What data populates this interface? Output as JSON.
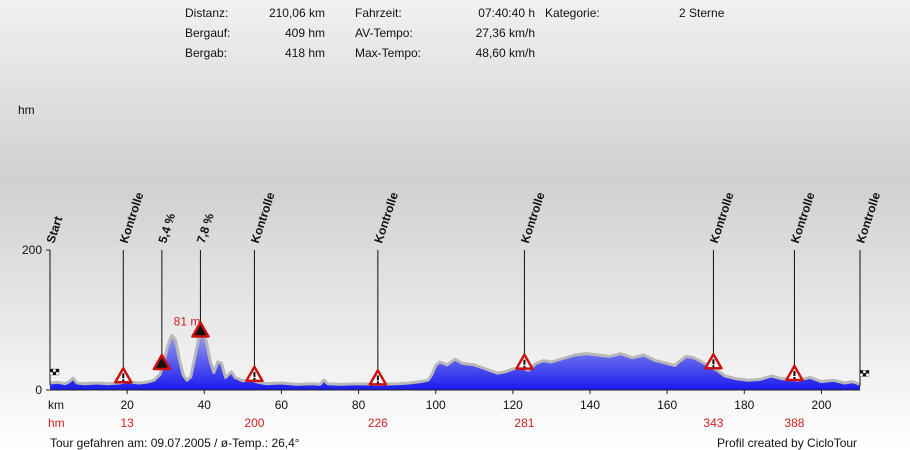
{
  "stats": {
    "distance_label": "Distanz:",
    "distance_value": "210,06 km",
    "ascent_label": "Bergauf:",
    "ascent_value": "409 hm",
    "descent_label": "Bergab:",
    "descent_value": "418 hm",
    "time_label": "Fahrzeit:",
    "time_value": "07:40:40 h",
    "avg_label": "AV-Tempo:",
    "avg_value": "27,36 km/h",
    "max_label": "Max-Tempo:",
    "max_value": "48,60 km/h",
    "category_label": "Kategorie:",
    "category_value": "2 Sterne"
  },
  "footer": {
    "left": "Tour gefahren am: 09.07.2005  /  ø-Temp.: 26,4°",
    "right": "Profil created by CicloTour"
  },
  "colors": {
    "fill_top": "#9aa0ee",
    "fill_bottom": "#1a1aee",
    "outline": "#b8b8b8",
    "red": "#cc2222"
  },
  "chart_data": {
    "type": "area",
    "ylabel": "hm",
    "xlabel": "km",
    "xlim": [
      0,
      210
    ],
    "ylim": [
      0,
      200
    ],
    "yticks": [
      0,
      200
    ],
    "xticks": [
      20,
      40,
      60,
      80,
      100,
      120,
      140,
      160,
      180,
      200
    ],
    "profile": [
      [
        0,
        10
      ],
      [
        2,
        11
      ],
      [
        4,
        9
      ],
      [
        5,
        12
      ],
      [
        6,
        17
      ],
      [
        7,
        10
      ],
      [
        9,
        9
      ],
      [
        12,
        10
      ],
      [
        15,
        9
      ],
      [
        18,
        10
      ],
      [
        20,
        12
      ],
      [
        23,
        10
      ],
      [
        25,
        11
      ],
      [
        27,
        14
      ],
      [
        28.5,
        22
      ],
      [
        29.5,
        38
      ],
      [
        30.5,
        62
      ],
      [
        31.5,
        78
      ],
      [
        32.5,
        72
      ],
      [
        33.5,
        45
      ],
      [
        34.5,
        22
      ],
      [
        35.5,
        14
      ],
      [
        36.5,
        19
      ],
      [
        37.5,
        45
      ],
      [
        38.5,
        72
      ],
      [
        39.5,
        81
      ],
      [
        40.5,
        70
      ],
      [
        41.5,
        42
      ],
      [
        42.5,
        25
      ],
      [
        43.5,
        40
      ],
      [
        44.5,
        38
      ],
      [
        45.5,
        18
      ],
      [
        47,
        26
      ],
      [
        48,
        18
      ],
      [
        50,
        13
      ],
      [
        52,
        15
      ],
      [
        54,
        11
      ],
      [
        56,
        9
      ],
      [
        60,
        10
      ],
      [
        64,
        8
      ],
      [
        68,
        9
      ],
      [
        70,
        8
      ],
      [
        71,
        14
      ],
      [
        72,
        9
      ],
      [
        75,
        8
      ],
      [
        80,
        9
      ],
      [
        85,
        8
      ],
      [
        90,
        9
      ],
      [
        93,
        10
      ],
      [
        96,
        12
      ],
      [
        98,
        14
      ],
      [
        99,
        22
      ],
      [
        100,
        35
      ],
      [
        101,
        40
      ],
      [
        103,
        36
      ],
      [
        105,
        44
      ],
      [
        107,
        38
      ],
      [
        110,
        36
      ],
      [
        112,
        32
      ],
      [
        114,
        28
      ],
      [
        116,
        24
      ],
      [
        118,
        26
      ],
      [
        120,
        30
      ],
      [
        122,
        33
      ],
      [
        124,
        28
      ],
      [
        126,
        38
      ],
      [
        128,
        42
      ],
      [
        130,
        40
      ],
      [
        133,
        45
      ],
      [
        136,
        50
      ],
      [
        139,
        52
      ],
      [
        142,
        50
      ],
      [
        145,
        48
      ],
      [
        148,
        52
      ],
      [
        151,
        46
      ],
      [
        154,
        50
      ],
      [
        157,
        42
      ],
      [
        160,
        38
      ],
      [
        162,
        35
      ],
      [
        163,
        40
      ],
      [
        165,
        48
      ],
      [
        167,
        46
      ],
      [
        169,
        40
      ],
      [
        171,
        34
      ],
      [
        173,
        28
      ],
      [
        175,
        20
      ],
      [
        178,
        16
      ],
      [
        181,
        14
      ],
      [
        184,
        15
      ],
      [
        187,
        20
      ],
      [
        189,
        17
      ],
      [
        191,
        15
      ],
      [
        194,
        14
      ],
      [
        197,
        18
      ],
      [
        200,
        12
      ],
      [
        203,
        14
      ],
      [
        206,
        10
      ],
      [
        208,
        12
      ],
      [
        210,
        8
      ]
    ],
    "secondary_axis": {
      "label": "hm",
      "entries": [
        {
          "km": 20,
          "value": "13"
        },
        {
          "km": 53,
          "value": "200"
        },
        {
          "km": 85,
          "value": "226"
        },
        {
          "km": 123,
          "value": "281"
        },
        {
          "km": 172,
          "value": "343"
        },
        {
          "km": 193,
          "value": "388"
        }
      ]
    },
    "annotations": [
      {
        "km": 0,
        "label": "Start",
        "marker": "start-flag"
      },
      {
        "km": 19,
        "label": "Kontrolle",
        "marker": "warning"
      },
      {
        "km": 29,
        "label": "5,4 %",
        "marker": "climb"
      },
      {
        "km": 39,
        "label": "7,8 %",
        "marker": "climb"
      },
      {
        "km": 53,
        "label": "Kontrolle",
        "marker": "warning"
      },
      {
        "km": 85,
        "label": "Kontrolle",
        "marker": "warning"
      },
      {
        "km": 123,
        "label": "Kontrolle",
        "marker": "warning"
      },
      {
        "km": 172,
        "label": "Kontrolle",
        "marker": "warning"
      },
      {
        "km": 193,
        "label": "Kontrolle",
        "marker": "warning"
      },
      {
        "km": 210,
        "label": "Kontrolle",
        "marker": "finish-flag"
      }
    ],
    "peak_label": {
      "km": 39.5,
      "value": 81,
      "text": "81 m"
    }
  }
}
